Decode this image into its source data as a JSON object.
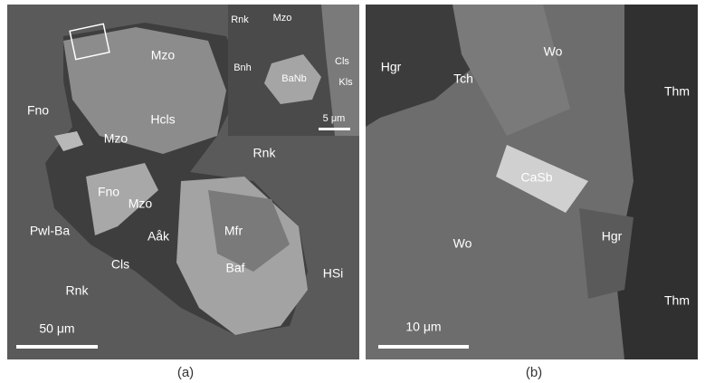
{
  "panels": [
    {
      "caption": "(a)",
      "scale_bar": "50 μm",
      "labels": [
        "Mzo",
        "Hcls",
        "Fno",
        "Mzo",
        "Rnk",
        "Fno",
        "Mzo",
        "Pwl-Ba",
        "Aåk",
        "Mfr",
        "Cls",
        "Baf",
        "HSi",
        "Rnk"
      ],
      "inset": {
        "labels": [
          "Rnk",
          "Mzo",
          "Bnh",
          "BaNb",
          "Cls",
          "Kls"
        ],
        "scale_bar": "5 μm"
      }
    },
    {
      "caption": "(b)",
      "scale_bar": "10 μm",
      "labels": [
        "Hgr",
        "Tch",
        "Wo",
        "Thm",
        "CaSb",
        "Hgr",
        "Wo",
        "Thm"
      ]
    }
  ]
}
